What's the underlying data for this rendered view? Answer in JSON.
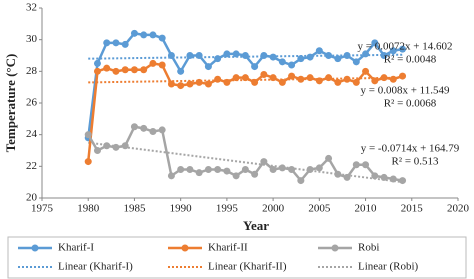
{
  "chart_data": {
    "type": "line",
    "y_label": "Temperature (°C)",
    "x_label": "Year",
    "x": [
      1980,
      1981,
      1982,
      1983,
      1984,
      1985,
      1986,
      1987,
      1988,
      1989,
      1990,
      1991,
      1992,
      1993,
      1994,
      1995,
      1996,
      1997,
      1998,
      1999,
      2000,
      2001,
      2002,
      2003,
      2004,
      2005,
      2006,
      2007,
      2008,
      2009,
      2010,
      2011,
      2012,
      2013,
      2014
    ],
    "series": [
      {
        "name": "Kharif-I",
        "color": "#5b9bd5",
        "values": [
          23.8,
          28.5,
          29.8,
          29.8,
          29.7,
          30.4,
          30.3,
          30.3,
          30.1,
          29.0,
          28.0,
          29.0,
          29.0,
          28.3,
          28.8,
          29.1,
          29.1,
          29.0,
          28.3,
          29.0,
          28.9,
          28.6,
          28.4,
          28.8,
          28.9,
          29.3,
          29.0,
          28.8,
          29.0,
          28.6,
          29.1,
          29.8,
          29.0,
          29.3,
          29.4
        ]
      },
      {
        "name": "Kharif-II",
        "color": "#ed7d31",
        "values": [
          22.3,
          28.0,
          28.2,
          28.0,
          28.1,
          28.1,
          28.1,
          28.5,
          28.4,
          27.2,
          27.1,
          27.2,
          27.3,
          27.2,
          27.5,
          27.3,
          27.6,
          27.6,
          27.3,
          27.8,
          27.6,
          27.3,
          27.7,
          27.5,
          27.6,
          27.4,
          27.6,
          27.3,
          27.5,
          27.3,
          28.0,
          27.4,
          27.6,
          27.5,
          27.7
        ]
      },
      {
        "name": "Robi",
        "color": "#a5a5a5",
        "values": [
          24.0,
          23.0,
          23.3,
          23.2,
          23.3,
          24.5,
          24.4,
          24.2,
          24.3,
          21.4,
          21.8,
          21.8,
          21.6,
          21.8,
          21.8,
          21.7,
          21.4,
          21.8,
          21.5,
          22.3,
          21.8,
          21.9,
          21.8,
          21.1,
          21.8,
          21.9,
          22.5,
          21.5,
          21.3,
          22.1,
          22.1,
          21.4,
          21.3,
          21.2,
          21.1
        ]
      }
    ],
    "trend_x": [
      1980,
      2014
    ],
    "trendlines": [
      {
        "name": "Linear (Kharif-I)",
        "color": "#5b9bd5",
        "values": [
          28.8,
          29.05
        ],
        "equation": "y = 0.0072x + 14.602",
        "r2": "R² = 0.0048"
      },
      {
        "name": "Linear (Kharif-II)",
        "color": "#ed7d31",
        "values": [
          27.3,
          27.6
        ],
        "equation": "y = 0.008x + 11.549",
        "r2": "R² = 0.0068"
      },
      {
        "name": "Linear (Robi)",
        "color": "#a5a5a5",
        "values": [
          23.5,
          21.0
        ],
        "equation": "y = -0.0714x + 164.79",
        "r2": "R² = 0.513"
      }
    ],
    "xlim": [
      1975,
      2020
    ],
    "xticks": [
      1975,
      1980,
      1985,
      1990,
      1995,
      2000,
      2005,
      2010,
      2015,
      2020
    ],
    "ylim": [
      20,
      32
    ],
    "yticks": [
      20,
      22,
      24,
      26,
      28,
      30,
      32
    ],
    "grid": false
  }
}
